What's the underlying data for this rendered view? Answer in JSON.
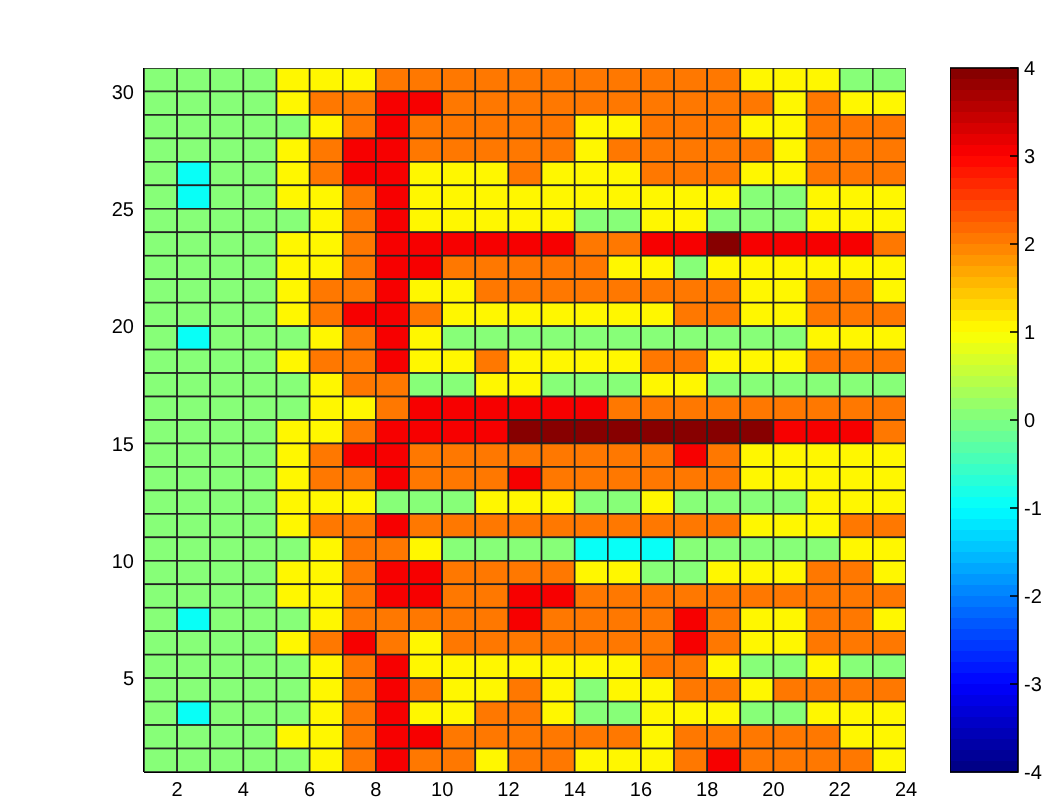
{
  "chart_data": {
    "type": "heatmap",
    "xlim": [
      1,
      24
    ],
    "xticks": [
      2,
      4,
      6,
      8,
      10,
      12,
      14,
      16,
      18,
      20,
      22,
      24
    ],
    "ylim": [
      1,
      31
    ],
    "yticks": [
      5,
      10,
      15,
      20,
      25,
      30
    ],
    "clim": [
      -4,
      4
    ],
    "cticks": [
      -4,
      -3,
      -2,
      -1,
      0,
      1,
      2,
      3,
      4
    ],
    "cells": [
      [
        0,
        0,
        0,
        0,
        1,
        1,
        1,
        2,
        2,
        2,
        2,
        2,
        2,
        2,
        2,
        2,
        2,
        2,
        1,
        1,
        1,
        0,
        0
      ],
      [
        0,
        0,
        0,
        0,
        1,
        2,
        2,
        3,
        3,
        2,
        2,
        2,
        2,
        2,
        2,
        2,
        2,
        2,
        2,
        1,
        2,
        1,
        1
      ],
      [
        0,
        0,
        0,
        0,
        0,
        1,
        2,
        3,
        2,
        2,
        2,
        2,
        2,
        1,
        1,
        2,
        2,
        2,
        1,
        1,
        2,
        2,
        2
      ],
      [
        0,
        0,
        0,
        0,
        1,
        2,
        3,
        3,
        2,
        2,
        2,
        2,
        2,
        1,
        2,
        2,
        2,
        2,
        2,
        1,
        2,
        2,
        2
      ],
      [
        0,
        -1,
        0,
        0,
        1,
        2,
        3,
        3,
        1,
        1,
        1,
        2,
        1,
        1,
        1,
        2,
        2,
        2,
        1,
        1,
        2,
        2,
        2
      ],
      [
        0,
        -1,
        0,
        0,
        1,
        1,
        2,
        3,
        1,
        1,
        1,
        1,
        1,
        1,
        1,
        1,
        1,
        1,
        0,
        0,
        1,
        1,
        1
      ],
      [
        0,
        0,
        0,
        0,
        0,
        1,
        2,
        3,
        1,
        1,
        1,
        1,
        1,
        0,
        0,
        1,
        1,
        0,
        0,
        0,
        1,
        1,
        1
      ],
      [
        0,
        0,
        0,
        0,
        1,
        1,
        2,
        3,
        3,
        3,
        3,
        3,
        3,
        2,
        2,
        3,
        3,
        4,
        3,
        3,
        3,
        3,
        2
      ],
      [
        0,
        0,
        0,
        0,
        1,
        1,
        2,
        3,
        3,
        2,
        2,
        2,
        2,
        2,
        1,
        1,
        0,
        1,
        1,
        1,
        1,
        1,
        1
      ],
      [
        0,
        0,
        0,
        0,
        1,
        2,
        2,
        3,
        1,
        1,
        2,
        2,
        2,
        2,
        2,
        2,
        2,
        2,
        1,
        1,
        2,
        2,
        1
      ],
      [
        0,
        0,
        0,
        0,
        1,
        2,
        3,
        3,
        2,
        1,
        1,
        1,
        1,
        1,
        1,
        1,
        2,
        2,
        1,
        1,
        2,
        2,
        2
      ],
      [
        0,
        -1,
        0,
        0,
        0,
        1,
        2,
        3,
        1,
        0,
        0,
        0,
        0,
        0,
        0,
        0,
        0,
        0,
        0,
        0,
        1,
        1,
        1
      ],
      [
        0,
        0,
        0,
        0,
        1,
        2,
        2,
        3,
        1,
        1,
        2,
        1,
        1,
        1,
        1,
        2,
        2,
        1,
        1,
        1,
        2,
        2,
        2
      ],
      [
        0,
        0,
        0,
        0,
        0,
        1,
        2,
        2,
        0,
        0,
        1,
        1,
        0,
        0,
        0,
        1,
        1,
        0,
        0,
        0,
        0,
        0,
        0
      ],
      [
        0,
        0,
        0,
        0,
        0,
        1,
        1,
        2,
        3,
        3,
        3,
        3,
        3,
        3,
        2,
        2,
        2,
        2,
        2,
        2,
        2,
        2,
        2
      ],
      [
        0,
        0,
        0,
        0,
        1,
        1,
        2,
        3,
        3,
        3,
        3,
        4,
        4,
        4,
        4,
        4,
        4,
        4,
        4,
        3,
        3,
        3,
        2
      ],
      [
        0,
        0,
        0,
        0,
        1,
        2,
        3,
        3,
        2,
        2,
        2,
        2,
        2,
        2,
        2,
        2,
        3,
        2,
        1,
        1,
        1,
        1,
        1
      ],
      [
        0,
        0,
        0,
        0,
        1,
        2,
        2,
        3,
        2,
        2,
        2,
        3,
        2,
        2,
        2,
        2,
        2,
        2,
        1,
        1,
        1,
        1,
        1
      ],
      [
        0,
        0,
        0,
        0,
        1,
        1,
        1,
        0,
        0,
        0,
        1,
        1,
        1,
        0,
        0,
        1,
        0,
        0,
        0,
        0,
        1,
        1,
        1
      ],
      [
        0,
        0,
        0,
        0,
        1,
        2,
        2,
        3,
        2,
        2,
        2,
        2,
        2,
        2,
        2,
        2,
        2,
        2,
        1,
        1,
        1,
        2,
        2
      ],
      [
        0,
        0,
        0,
        0,
        0,
        1,
        2,
        2,
        1,
        0,
        0,
        0,
        0,
        -1,
        -1,
        -1,
        0,
        0,
        0,
        0,
        0,
        1,
        1
      ],
      [
        0,
        0,
        0,
        0,
        1,
        1,
        2,
        3,
        3,
        2,
        2,
        2,
        2,
        1,
        1,
        0,
        0,
        1,
        1,
        1,
        2,
        2,
        1
      ],
      [
        0,
        0,
        0,
        0,
        1,
        1,
        2,
        3,
        3,
        2,
        2,
        3,
        3,
        2,
        2,
        2,
        2,
        2,
        2,
        2,
        2,
        2,
        2
      ],
      [
        0,
        -1,
        0,
        0,
        0,
        1,
        2,
        2,
        2,
        2,
        2,
        3,
        2,
        2,
        2,
        2,
        3,
        2,
        1,
        1,
        2,
        2,
        1
      ],
      [
        0,
        0,
        0,
        0,
        1,
        2,
        3,
        2,
        1,
        2,
        2,
        2,
        2,
        2,
        2,
        2,
        3,
        2,
        1,
        1,
        2,
        2,
        2
      ],
      [
        0,
        0,
        0,
        0,
        0,
        1,
        2,
        3,
        1,
        1,
        1,
        1,
        1,
        1,
        1,
        2,
        2,
        1,
        0,
        0,
        1,
        0,
        0
      ],
      [
        0,
        0,
        0,
        0,
        0,
        1,
        2,
        3,
        2,
        1,
        1,
        2,
        1,
        0,
        1,
        1,
        2,
        2,
        1,
        2,
        2,
        2,
        2
      ],
      [
        0,
        -1,
        0,
        0,
        0,
        1,
        2,
        3,
        1,
        1,
        2,
        2,
        1,
        0,
        0,
        1,
        1,
        1,
        0,
        0,
        1,
        1,
        1
      ],
      [
        0,
        0,
        0,
        0,
        1,
        1,
        2,
        3,
        3,
        2,
        2,
        2,
        2,
        2,
        2,
        1,
        2,
        2,
        2,
        2,
        2,
        1,
        1
      ],
      [
        0,
        0,
        0,
        0,
        0,
        1,
        2,
        3,
        2,
        2,
        1,
        2,
        2,
        1,
        1,
        1,
        2,
        3,
        2,
        2,
        2,
        2,
        1
      ]
    ]
  }
}
